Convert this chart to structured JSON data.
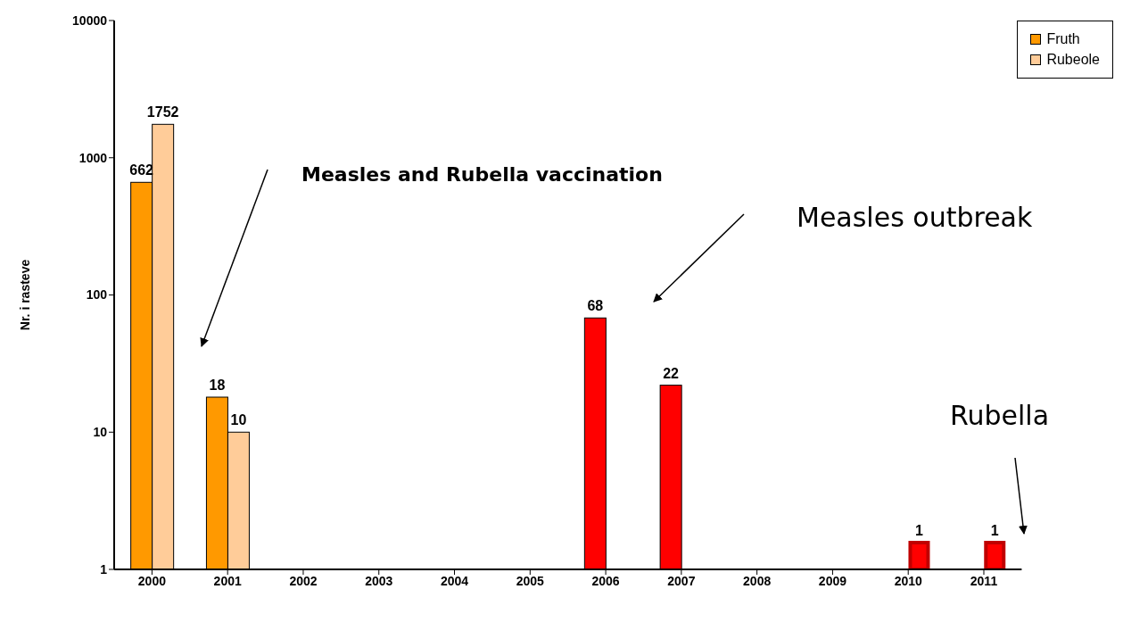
{
  "chart_data": {
    "type": "bar",
    "ylabel": "Nr. i rasteve",
    "categories": [
      "2000",
      "2001",
      "2002",
      "2003",
      "2004",
      "2005",
      "2006",
      "2007",
      "2008",
      "2009",
      "2010",
      "2011"
    ],
    "series": [
      {
        "name": "Fruth",
        "color": "#ff9900",
        "colors": [
          "#ff9900",
          "#ff9900",
          null,
          null,
          null,
          null,
          "#ff0000",
          "#ff0000",
          null,
          null,
          null,
          null
        ],
        "values": [
          662,
          18,
          null,
          null,
          null,
          null,
          68,
          22,
          null,
          null,
          null,
          null
        ]
      },
      {
        "name": "Rubeole",
        "color": "#ffcc99",
        "colors": [
          "#ffcc99",
          "#ffcc99",
          null,
          null,
          null,
          null,
          null,
          null,
          null,
          null,
          "#ff0000",
          "#ff0000"
        ],
        "values": [
          1752,
          10,
          null,
          null,
          null,
          null,
          null,
          null,
          null,
          null,
          1,
          1
        ]
      }
    ],
    "log": "y",
    "ylim": [
      1,
      10000
    ],
    "yticks": [
      1,
      10,
      100,
      1000,
      10000
    ],
    "data_labels": true,
    "legend": "top right",
    "annotations": [
      "Measles and Rubella vaccination",
      "Measles outbreak",
      "Rubella"
    ]
  }
}
